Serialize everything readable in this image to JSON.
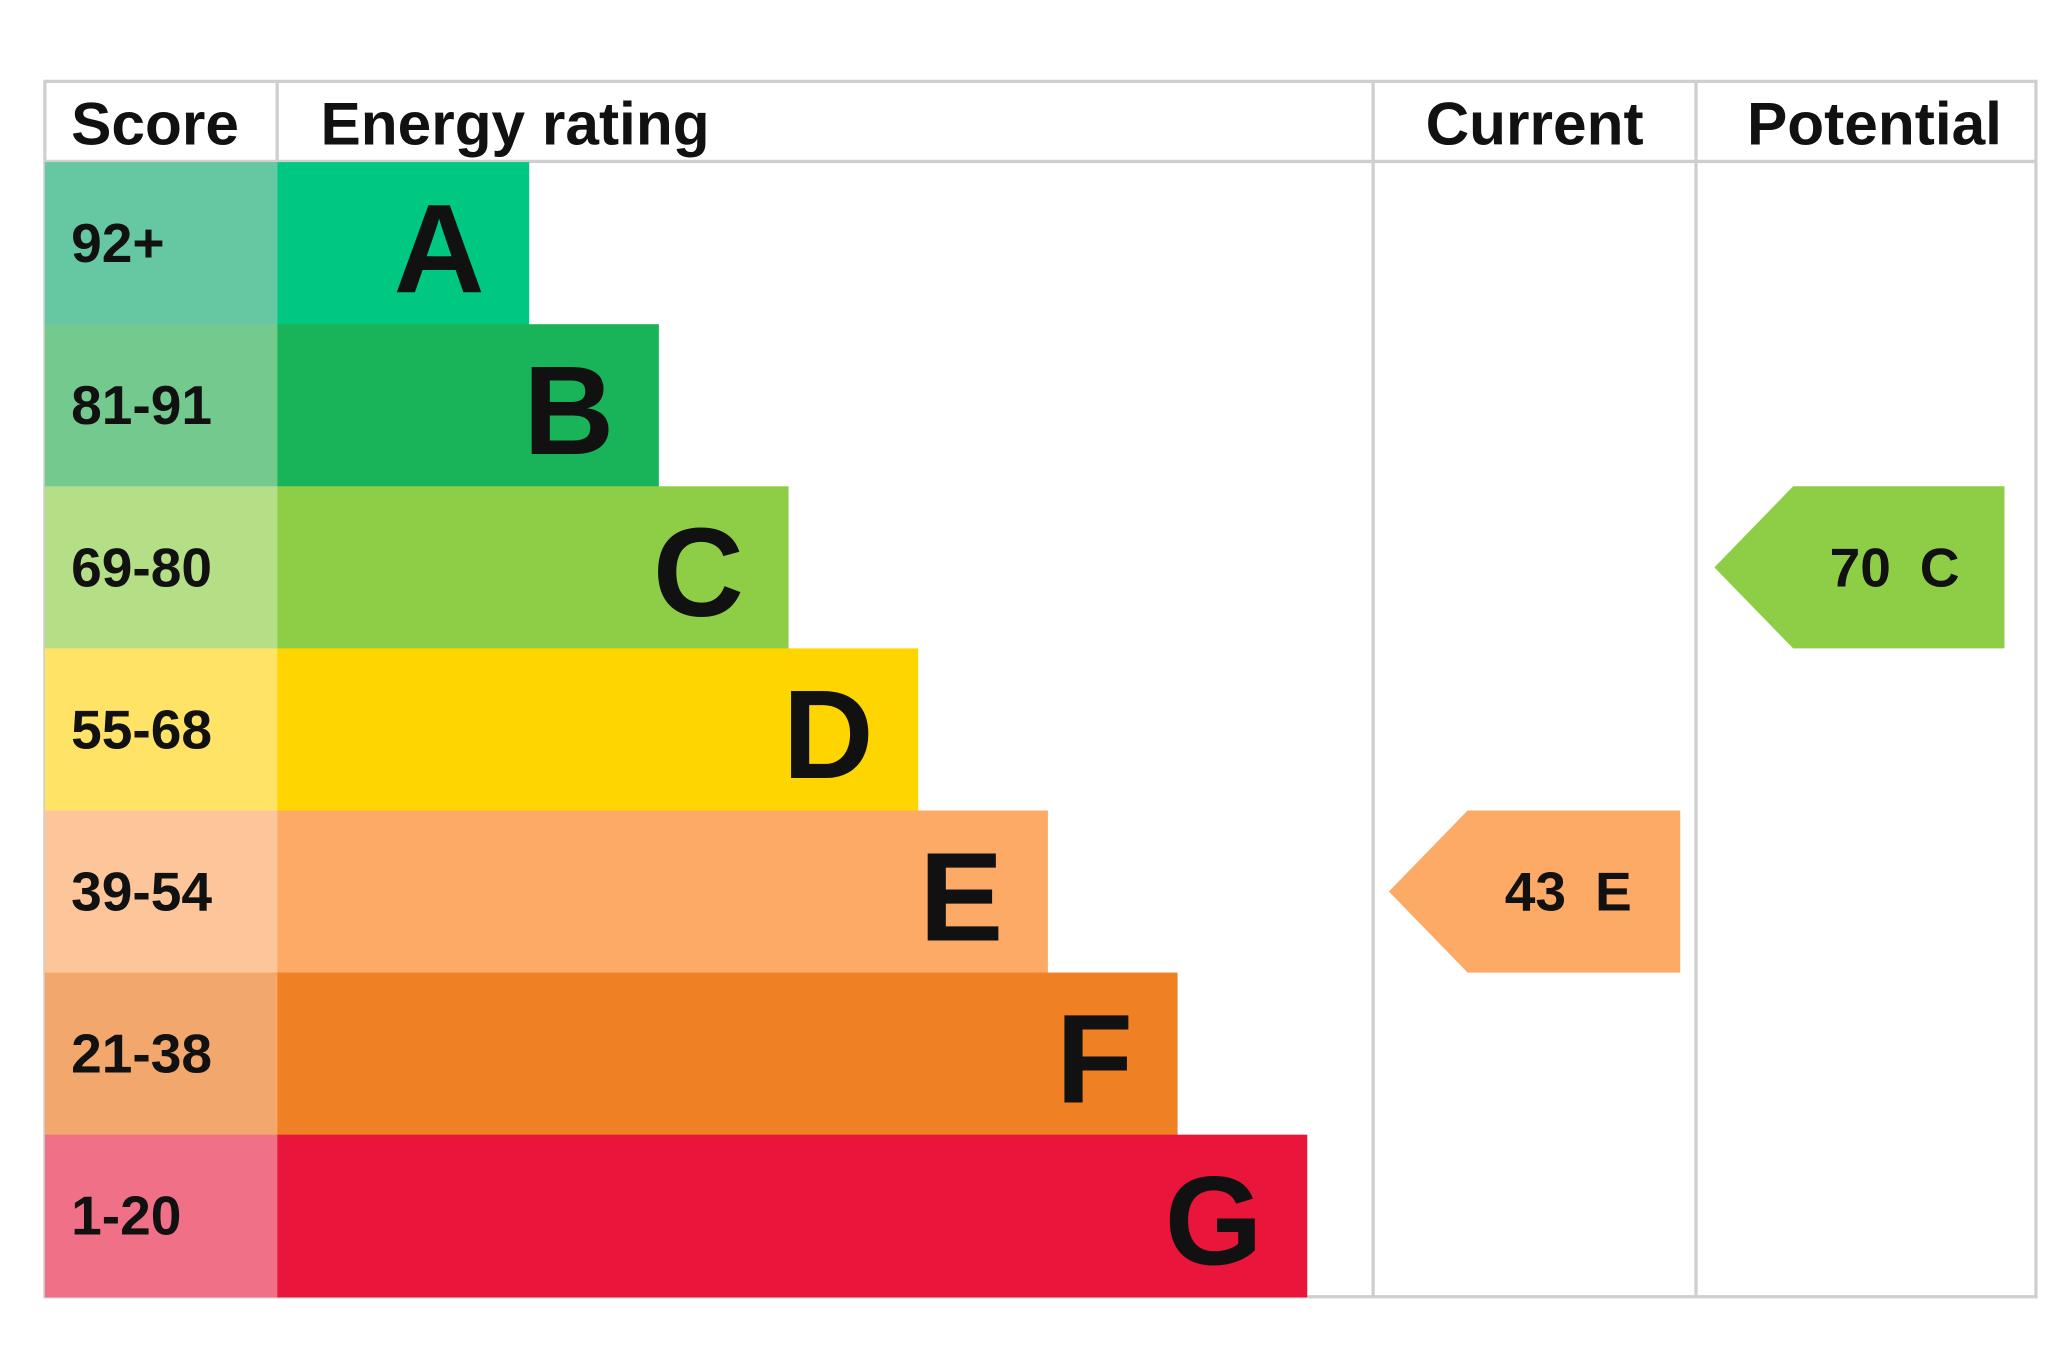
{
  "header": {
    "score": "Score",
    "energy_rating": "Energy rating",
    "current": "Current",
    "potential": "Potential"
  },
  "bands": [
    {
      "score": "92+",
      "letter": "A",
      "color": "#00c781",
      "score_color": "#65c8a2"
    },
    {
      "score": "81-91",
      "letter": "B",
      "color": "#19b459",
      "score_color": "#73c98e"
    },
    {
      "score": "69-80",
      "letter": "C",
      "color": "#8dce46",
      "score_color": "#b5df86"
    },
    {
      "score": "55-68",
      "letter": "D",
      "color": "#ffd500",
      "score_color": "#ffe366"
    },
    {
      "score": "39-54",
      "letter": "E",
      "color": "#fcaa65",
      "score_color": "#fcc69a"
    },
    {
      "score": "21-38",
      "letter": "F",
      "color": "#ef8023",
      "score_color": "#f2a86c"
    },
    {
      "score": "1-20",
      "letter": "G",
      "color": "#e9153b",
      "score_color": "#f07088"
    }
  ],
  "current": {
    "value": 43,
    "letter": "E"
  },
  "potential": {
    "value": 70,
    "letter": "C"
  }
}
